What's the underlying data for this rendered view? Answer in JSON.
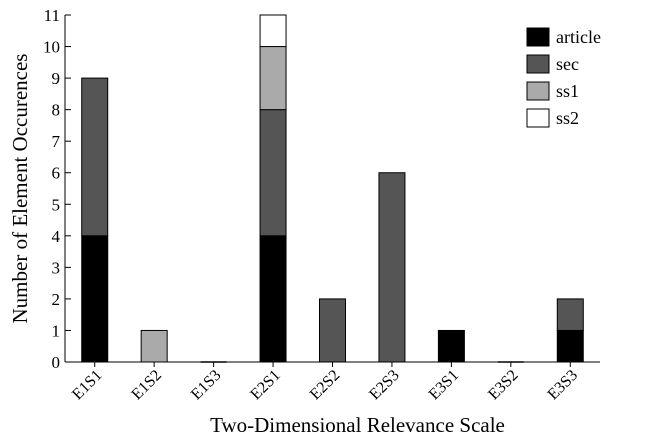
{
  "chart_data": {
    "type": "bar",
    "stacked": true,
    "title": "",
    "xlabel": "Two-Dimensional Relevance Scale",
    "ylabel": "Number of Element Occurences",
    "ylim": [
      0,
      11
    ],
    "yticks": [
      "0",
      "1",
      "2",
      "3",
      "4",
      "5",
      "6",
      "7",
      "8",
      "9",
      "10",
      "11"
    ],
    "categories": [
      "E1S1",
      "E1S2",
      "E1S3",
      "E2S1",
      "E2S2",
      "E2S3",
      "E3S1",
      "E3S2",
      "E3S3"
    ],
    "series": [
      {
        "name": "article",
        "color": "#000000",
        "values": [
          4,
          0,
          0,
          4,
          0,
          0,
          1,
          0,
          1
        ]
      },
      {
        "name": "sec",
        "color": "#555555",
        "values": [
          5,
          0,
          0,
          4,
          2,
          6,
          0,
          0,
          1
        ]
      },
      {
        "name": "ss1",
        "color": "#aaaaaa",
        "values": [
          0,
          1,
          0,
          2,
          0,
          0,
          0,
          0,
          0
        ]
      },
      {
        "name": "ss2",
        "color": "#ffffff",
        "values": [
          0,
          0,
          0,
          1,
          0,
          0,
          0,
          0,
          0
        ]
      }
    ],
    "grid": false,
    "legend_position": "top-right"
  }
}
